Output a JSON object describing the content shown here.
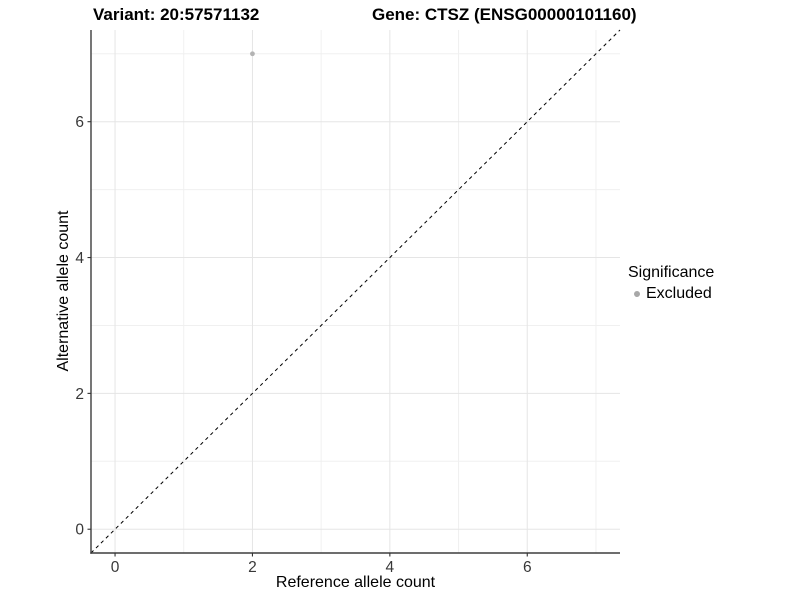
{
  "title": {
    "variant": "Variant: 20:57571132",
    "gene": "Gene: CTSZ (ENSG00000101160)"
  },
  "axes": {
    "x_label": "Reference allele count",
    "y_label": "Alternative allele count"
  },
  "legend": {
    "title": "Significance",
    "items": [
      {
        "label": "Excluded",
        "color": "#a8a8a8"
      }
    ]
  },
  "colors": {
    "background": "#ffffff",
    "grid_major": "#e5e5e5",
    "grid_minor": "#f0f0f0",
    "axis_line": "#3d3d3d",
    "tick_mark": "#333333",
    "tick_label": "#383838",
    "reference_line": "#000000",
    "point": "#b3b3b3"
  },
  "chart_data": {
    "type": "scatter",
    "title": "Variant: 20:57571132   Gene: CTSZ (ENSG00000101160)",
    "xlabel": "Reference allele count",
    "ylabel": "Alternative allele count",
    "xlim": [
      -0.35,
      7.35
    ],
    "ylim": [
      -0.35,
      7.35
    ],
    "x_ticks": [
      0,
      2,
      4,
      6
    ],
    "y_ticks": [
      0,
      2,
      4,
      6
    ],
    "x_minor_ticks": [
      1,
      3,
      5,
      7
    ],
    "y_minor_ticks": [
      1,
      3,
      5,
      7
    ],
    "grid": true,
    "legend_position": "right",
    "series": [
      {
        "name": "Excluded",
        "color": "#b3b3b3",
        "points": [
          {
            "x": 2,
            "y": 7
          }
        ]
      }
    ],
    "reference_line": {
      "type": "identity",
      "slope": 1,
      "intercept": 0,
      "style": "dashed"
    }
  }
}
